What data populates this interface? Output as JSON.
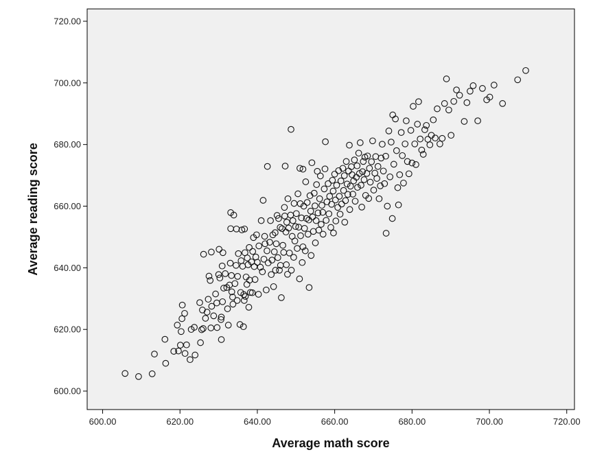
{
  "chart_data": {
    "type": "scatter",
    "xlabel": "Average math score",
    "ylabel": "Average reading score",
    "xlim": [
      596,
      722
    ],
    "ylim": [
      594,
      724
    ],
    "x_ticks": [
      "600.00",
      "620.00",
      "640.00",
      "660.00",
      "680.00",
      "700.00",
      "720.00"
    ],
    "y_ticks": [
      "600.00",
      "620.00",
      "640.00",
      "660.00",
      "680.00",
      "700.00",
      "720.00"
    ],
    "x_tick_values": [
      600,
      620,
      640,
      660,
      680,
      700,
      720
    ],
    "y_tick_values": [
      600,
      620,
      640,
      660,
      680,
      700,
      720
    ],
    "grid": false,
    "legend": "none",
    "colors": {
      "plot_background": "#f0f0f0",
      "marker_stroke": "#111111",
      "axis": "#000000"
    },
    "points": [
      [
        605.8,
        605.7
      ],
      [
        609.3,
        604.7
      ],
      [
        612.8,
        605.6
      ],
      [
        613.4,
        612.0
      ],
      [
        616.1,
        616.8
      ],
      [
        616.3,
        609.0
      ],
      [
        618.4,
        612.9
      ],
      [
        619.3,
        621.4
      ],
      [
        619.6,
        613.0
      ],
      [
        620.1,
        614.9
      ],
      [
        620.3,
        619.3
      ],
      [
        620.5,
        623.5
      ],
      [
        620.6,
        627.9
      ],
      [
        621.2,
        625.2
      ],
      [
        621.3,
        612.2
      ],
      [
        621.7,
        615.0
      ],
      [
        622.6,
        610.2
      ],
      [
        622.9,
        620.0
      ],
      [
        623.9,
        611.7
      ],
      [
        623.7,
        620.7
      ],
      [
        625.1,
        628.7
      ],
      [
        625.3,
        615.7
      ],
      [
        625.6,
        619.9
      ],
      [
        625.8,
        626.3
      ],
      [
        626.0,
        620.3
      ],
      [
        626.1,
        644.4
      ],
      [
        626.6,
        623.6
      ],
      [
        627.0,
        625.6
      ],
      [
        627.3,
        629.8
      ],
      [
        627.5,
        637.3
      ],
      [
        627.8,
        635.9
      ],
      [
        628.0,
        620.5
      ],
      [
        628.2,
        627.5
      ],
      [
        628.1,
        645.1
      ],
      [
        628.7,
        624.4
      ],
      [
        629.2,
        631.5
      ],
      [
        629.5,
        628.6
      ],
      [
        629.6,
        620.6
      ],
      [
        630.0,
        637.8
      ],
      [
        630.1,
        646.0
      ],
      [
        630.3,
        636.7
      ],
      [
        630.6,
        623.2
      ],
      [
        630.7,
        624.0
      ],
      [
        630.7,
        616.7
      ],
      [
        630.9,
        640.6
      ],
      [
        631.0,
        629.0
      ],
      [
        631.1,
        644.9
      ],
      [
        631.3,
        633.4
      ],
      [
        631.7,
        638.1
      ],
      [
        632.1,
        633.6
      ],
      [
        632.3,
        626.7
      ],
      [
        632.5,
        621.4
      ],
      [
        632.8,
        634.4
      ],
      [
        633.0,
        641.5
      ],
      [
        633.1,
        652.7
      ],
      [
        633.3,
        637.5
      ],
      [
        633.4,
        632.2
      ],
      [
        633.6,
        630.5
      ],
      [
        633.7,
        628.2
      ],
      [
        633.1,
        657.9
      ],
      [
        633.9,
        657.1
      ],
      [
        634.2,
        634.9
      ],
      [
        634.5,
        640.8
      ],
      [
        634.6,
        652.6
      ],
      [
        634.8,
        629.4
      ],
      [
        634.9,
        637.2
      ],
      [
        635.1,
        644.6
      ],
      [
        635.5,
        621.6
      ],
      [
        635.7,
        632.0
      ],
      [
        635.8,
        642.3
      ],
      [
        636.0,
        652.3
      ],
      [
        636.2,
        640.5
      ],
      [
        636.4,
        620.9
      ],
      [
        636.5,
        631.3
      ],
      [
        636.6,
        629.4
      ],
      [
        636.7,
        652.6
      ],
      [
        636.8,
        644.9
      ],
      [
        636.9,
        630.7
      ],
      [
        637.1,
        637.0
      ],
      [
        637.3,
        634.6
      ],
      [
        637.4,
        643.2
      ],
      [
        637.6,
        641.0
      ],
      [
        637.8,
        627.2
      ],
      [
        637.9,
        646.6
      ],
      [
        638.0,
        636.0
      ],
      [
        638.2,
        632.0
      ],
      [
        638.5,
        641.9
      ],
      [
        638.7,
        631.9
      ],
      [
        638.8,
        645.3
      ],
      [
        639.0,
        649.8
      ],
      [
        639.2,
        640.4
      ],
      [
        639.4,
        636.2
      ],
      [
        639.6,
        643.5
      ],
      [
        639.8,
        650.7
      ],
      [
        640.0,
        641.8
      ],
      [
        640.3,
        631.4
      ],
      [
        640.4,
        647.1
      ],
      [
        640.8,
        640.2
      ],
      [
        641.0,
        655.3
      ],
      [
        641.3,
        638.7
      ],
      [
        641.5,
        661.9
      ],
      [
        641.7,
        642.8
      ],
      [
        641.9,
        650.2
      ],
      [
        642.0,
        647.8
      ],
      [
        642.3,
        632.8
      ],
      [
        642.5,
        645.5
      ],
      [
        642.6,
        672.9
      ],
      [
        642.8,
        641.6
      ],
      [
        643.2,
        648.3
      ],
      [
        643.4,
        655.3
      ],
      [
        643.6,
        637.8
      ],
      [
        643.8,
        642.5
      ],
      [
        644.0,
        650.7
      ],
      [
        644.2,
        633.9
      ],
      [
        644.4,
        645.2
      ],
      [
        644.6,
        651.4
      ],
      [
        644.7,
        639.2
      ],
      [
        644.9,
        647.8
      ],
      [
        645.1,
        657.0
      ],
      [
        645.3,
        643.3
      ],
      [
        645.5,
        656.0
      ],
      [
        645.7,
        639.2
      ],
      [
        645.9,
        653.1
      ],
      [
        646.0,
        640.8
      ],
      [
        646.2,
        630.3
      ],
      [
        646.4,
        652.7
      ],
      [
        646.6,
        647.3
      ],
      [
        646.8,
        645.0
      ],
      [
        647.0,
        659.6
      ],
      [
        647.1,
        656.8
      ],
      [
        647.2,
        673.0
      ],
      [
        647.4,
        651.6
      ],
      [
        647.5,
        641.0
      ],
      [
        647.6,
        654.8
      ],
      [
        647.8,
        637.9
      ],
      [
        647.9,
        662.4
      ],
      [
        648.1,
        652.9
      ],
      [
        648.3,
        644.8
      ],
      [
        648.6,
        657.1
      ],
      [
        648.8,
        639.2
      ],
      [
        649.0,
        650.2
      ],
      [
        649.2,
        655.3
      ],
      [
        649.4,
        643.4
      ],
      [
        649.5,
        660.9
      ],
      [
        649.7,
        648.7
      ],
      [
        649.9,
        653.4
      ],
      [
        650.1,
        657.6
      ],
      [
        650.3,
        646.3
      ],
      [
        650.5,
        664.0
      ],
      [
        650.7,
        653.2
      ],
      [
        650.9,
        636.4
      ],
      [
        651.0,
        672.3
      ],
      [
        651.1,
        660.8
      ],
      [
        651.2,
        650.4
      ],
      [
        651.4,
        656.2
      ],
      [
        651.6,
        641.7
      ],
      [
        651.8,
        646.8
      ],
      [
        652.0,
        660.0
      ],
      [
        652.2,
        652.8
      ],
      [
        652.4,
        645.5
      ],
      [
        652.5,
        667.9
      ],
      [
        652.7,
        656.0
      ],
      [
        652.9,
        661.2
      ],
      [
        653.1,
        650.9
      ],
      [
        653.3,
        655.5
      ],
      [
        653.4,
        633.6
      ],
      [
        653.6,
        663.4
      ],
      [
        653.8,
        658.4
      ],
      [
        653.9,
        644.0
      ],
      [
        654.1,
        674.1
      ],
      [
        654.3,
        656.5
      ],
      [
        654.5,
        651.8
      ],
      [
        654.7,
        664.2
      ],
      [
        654.9,
        660.1
      ],
      [
        655.0,
        648.1
      ],
      [
        655.2,
        655.3
      ],
      [
        655.3,
        667.0
      ],
      [
        655.5,
        671.3
      ],
      [
        655.7,
        657.8
      ],
      [
        655.9,
        652.2
      ],
      [
        656.1,
        662.4
      ],
      [
        656.3,
        669.8
      ],
      [
        656.5,
        654.1
      ],
      [
        656.7,
        660.3
      ],
      [
        656.9,
        658.0
      ],
      [
        657.0,
        650.9
      ],
      [
        657.3,
        665.6
      ],
      [
        657.5,
        672.1
      ],
      [
        657.6,
        680.9
      ],
      [
        657.8,
        655.4
      ],
      [
        658.0,
        661.4
      ],
      [
        658.3,
        667.3
      ],
      [
        658.5,
        657.5
      ],
      [
        658.7,
        663.2
      ],
      [
        659.0,
        653.1
      ],
      [
        659.2,
        660.6
      ],
      [
        659.4,
        668.4
      ],
      [
        659.6,
        664.9
      ],
      [
        659.7,
        651.3
      ],
      [
        660.0,
        670.4
      ],
      [
        660.2,
        662.0
      ],
      [
        660.3,
        655.2
      ],
      [
        660.5,
        666.8
      ],
      [
        660.8,
        659.6
      ],
      [
        661.0,
        671.5
      ],
      [
        661.2,
        663.2
      ],
      [
        661.4,
        657.4
      ],
      [
        661.6,
        668.2
      ],
      [
        661.8,
        660.7
      ],
      [
        662.1,
        672.3
      ],
      [
        662.3,
        665.1
      ],
      [
        662.5,
        669.9
      ],
      [
        662.6,
        654.8
      ],
      [
        662.8,
        661.8
      ],
      [
        663.0,
        674.5
      ],
      [
        663.2,
        667.2
      ],
      [
        663.4,
        663.8
      ],
      [
        663.6,
        671.4
      ],
      [
        663.8,
        679.8
      ],
      [
        663.9,
        658.9
      ],
      [
        664.1,
        666.5
      ],
      [
        664.3,
        672.8
      ],
      [
        664.5,
        670.2
      ],
      [
        664.7,
        663.9
      ],
      [
        664.9,
        668.2
      ],
      [
        665.1,
        675.0
      ],
      [
        665.3,
        661.6
      ],
      [
        665.6,
        669.4
      ],
      [
        665.8,
        673.1
      ],
      [
        665.9,
        666.1
      ],
      [
        666.2,
        677.2
      ],
      [
        666.4,
        670.6
      ],
      [
        666.6,
        680.6
      ],
      [
        666.8,
        666.8
      ],
      [
        667.0,
        659.7
      ],
      [
        667.2,
        671.2
      ],
      [
        667.4,
        674.5
      ],
      [
        667.6,
        668.6
      ],
      [
        667.8,
        675.9
      ],
      [
        668.0,
        663.5
      ],
      [
        668.3,
        670.6
      ],
      [
        668.5,
        676.3
      ],
      [
        668.8,
        662.5
      ],
      [
        669.0,
        672.3
      ],
      [
        669.2,
        667.8
      ],
      [
        669.5,
        674.4
      ],
      [
        669.8,
        681.2
      ],
      [
        670.1,
        665.2
      ],
      [
        670.4,
        670.7
      ],
      [
        670.6,
        676.1
      ],
      [
        670.9,
        669.0
      ],
      [
        671.2,
        672.9
      ],
      [
        671.5,
        662.4
      ],
      [
        671.8,
        666.6
      ],
      [
        672.0,
        675.6
      ],
      [
        672.3,
        680.1
      ],
      [
        672.6,
        671.4
      ],
      [
        672.9,
        667.3
      ],
      [
        673.2,
        676.2
      ],
      [
        673.3,
        651.2
      ],
      [
        673.6,
        660.0
      ],
      [
        674.0,
        684.4
      ],
      [
        674.3,
        669.5
      ],
      [
        674.6,
        680.8
      ],
      [
        674.9,
        656.0
      ],
      [
        675.0,
        689.6
      ],
      [
        675.3,
        673.6
      ],
      [
        675.7,
        688.3
      ],
      [
        676.0,
        678.0
      ],
      [
        676.3,
        666.0
      ],
      [
        676.5,
        660.4
      ],
      [
        676.8,
        670.2
      ],
      [
        677.2,
        683.9
      ],
      [
        677.5,
        676.4
      ],
      [
        677.8,
        667.5
      ],
      [
        678.2,
        680.2
      ],
      [
        678.5,
        687.7
      ],
      [
        678.8,
        674.5
      ],
      [
        679.2,
        670.5
      ],
      [
        679.7,
        684.6
      ],
      [
        680.0,
        674.0
      ],
      [
        680.3,
        692.4
      ],
      [
        680.7,
        680.2
      ],
      [
        681.0,
        673.5
      ],
      [
        681.4,
        686.6
      ],
      [
        681.7,
        693.9
      ],
      [
        682.1,
        681.8
      ],
      [
        682.5,
        678.2
      ],
      [
        682.9,
        676.8
      ],
      [
        683.3,
        684.8
      ],
      [
        683.7,
        686.2
      ],
      [
        684.1,
        681.7
      ],
      [
        684.6,
        679.9
      ],
      [
        685.0,
        683.0
      ],
      [
        685.5,
        688.0
      ],
      [
        686.0,
        682.1
      ],
      [
        686.5,
        691.6
      ],
      [
        687.2,
        680.2
      ],
      [
        687.8,
        682.0
      ],
      [
        688.4,
        693.3
      ],
      [
        688.9,
        701.3
      ],
      [
        689.5,
        691.2
      ],
      [
        690.1,
        683.0
      ],
      [
        690.8,
        694.0
      ],
      [
        691.5,
        697.7
      ],
      [
        692.3,
        696.0
      ],
      [
        693.5,
        687.5
      ],
      [
        694.2,
        693.6
      ],
      [
        695.0,
        697.3
      ],
      [
        695.8,
        699.1
      ],
      [
        697.0,
        687.7
      ],
      [
        698.2,
        698.2
      ],
      [
        699.3,
        694.5
      ],
      [
        700.1,
        695.4
      ],
      [
        701.2,
        699.3
      ],
      [
        703.4,
        693.3
      ],
      [
        707.3,
        701.0
      ],
      [
        709.4,
        704.0
      ],
      [
        648.7,
        684.9
      ],
      [
        651.8,
        672.0
      ]
    ]
  }
}
